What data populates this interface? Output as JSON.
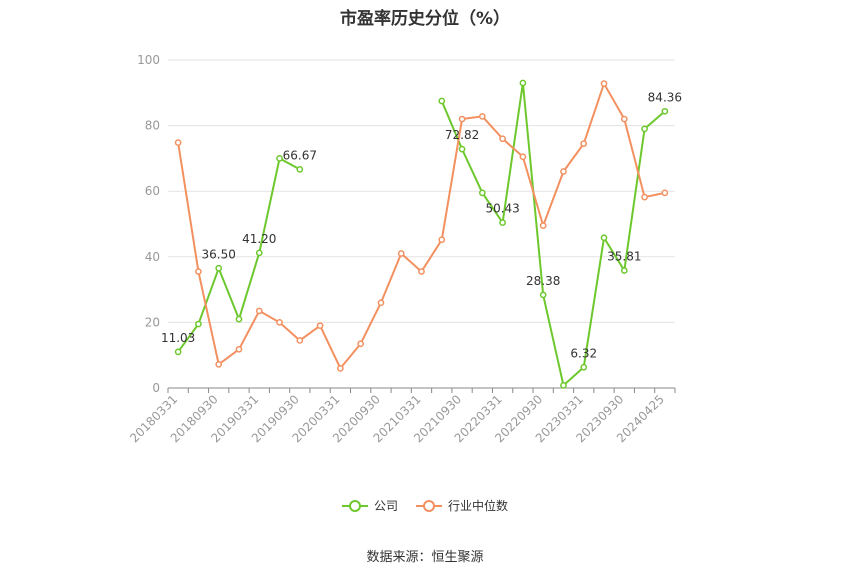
{
  "title": "市盈率历史分位（%）",
  "source": "数据来源：恒生聚源",
  "colors": {
    "company": "#6dc82d",
    "industry": "#f39060",
    "grid": "#e3e3e3",
    "axis": "#888888",
    "tick_label": "#999999",
    "data_label": "#333333"
  },
  "legend": {
    "company": "公司",
    "industry": "行业中位数"
  },
  "chart_data": {
    "type": "line",
    "title": "市盈率历史分位（%）",
    "xlabel": "",
    "ylabel": "",
    "ylim": [
      0,
      100
    ],
    "yticks": [
      0,
      20,
      40,
      60,
      80,
      100
    ],
    "grid": true,
    "legend_position": "bottom",
    "categories": [
      "20180331",
      "20180630",
      "20180930",
      "20181231",
      "20190331",
      "20190630",
      "20190930",
      "20191231",
      "20200331",
      "20200630",
      "20200930",
      "20201231",
      "20210331",
      "20210630",
      "20210930",
      "20211231",
      "20220331",
      "20220630",
      "20220930",
      "20221231",
      "20230331",
      "20230630",
      "20230930",
      "20231231",
      "20240425"
    ],
    "xtick_labels": [
      "20180331",
      "20180930",
      "20190331",
      "20190930",
      "20200331",
      "20200930",
      "20210331",
      "20210930",
      "20220331",
      "20220930",
      "20230331",
      "20230930",
      "20240425"
    ],
    "series": [
      {
        "name": "公司",
        "key": "company",
        "values": [
          11.03,
          19.5,
          36.5,
          21.0,
          41.2,
          70.0,
          66.67,
          null,
          null,
          null,
          null,
          null,
          null,
          87.5,
          72.82,
          59.5,
          50.43,
          93.0,
          28.38,
          0.8,
          6.32,
          45.8,
          35.81,
          79.0,
          84.36
        ],
        "labels": {
          "0": "11.03",
          "2": "36.50",
          "4": "41.20",
          "6": "66.67",
          "14": "72.82",
          "16": "50.43",
          "18": "28.38",
          "20": "6.32",
          "22": "35.81",
          "24": "84.36"
        }
      },
      {
        "name": "行业中位数",
        "key": "industry",
        "values": [
          74.8,
          35.5,
          7.2,
          11.8,
          23.5,
          20.0,
          14.5,
          19.0,
          6.0,
          13.5,
          26.0,
          41.0,
          35.5,
          45.2,
          82.0,
          82.8,
          76.0,
          70.5,
          49.5,
          66.0,
          74.5,
          92.8,
          82.0,
          58.2,
          59.5
        ]
      }
    ]
  }
}
